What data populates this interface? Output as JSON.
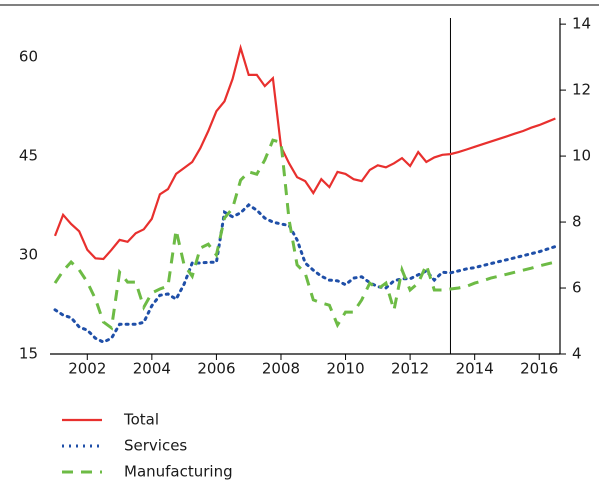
{
  "chart_data": {
    "type": "line",
    "x": [
      2001,
      2001.25,
      2001.5,
      2001.75,
      2002,
      2002.25,
      2002.5,
      2002.75,
      2003,
      2003.25,
      2003.5,
      2003.75,
      2004,
      2004.25,
      2004.5,
      2004.75,
      2005,
      2005.25,
      2005.5,
      2005.75,
      2006,
      2006.25,
      2006.5,
      2006.75,
      2007,
      2007.25,
      2007.5,
      2007.75,
      2008,
      2008.25,
      2008.5,
      2008.75,
      2009,
      2009.25,
      2009.5,
      2009.75,
      2010,
      2010.25,
      2010.5,
      2010.75,
      2011,
      2011.25,
      2011.5,
      2011.75,
      2012,
      2012.25,
      2012.5,
      2012.75,
      2013,
      2013.25,
      2013.5,
      2013.75,
      2014,
      2014.25,
      2014.5,
      2014.75,
      2015,
      2015.25,
      2015.5,
      2015.75,
      2016,
      2016.25,
      2016.5
    ],
    "series": [
      {
        "name": "Total",
        "color": "#e8302e",
        "style": "solid",
        "values": [
          32.9,
          36.1,
          34.7,
          33.6,
          30.8,
          29.5,
          29.4,
          30.8,
          32.3,
          32.0,
          33.3,
          33.9,
          35.5,
          39.2,
          40.0,
          42.3,
          43.2,
          44.1,
          46.2,
          48.8,
          51.8,
          53.3,
          56.7,
          61.4,
          57.3,
          57.3,
          55.6,
          56.8,
          46.4,
          43.9,
          41.8,
          41.2,
          39.4,
          41.5,
          40.3,
          42.6,
          42.3,
          41.5,
          41.2,
          42.9,
          43.6,
          43.3,
          43.9,
          44.7,
          43.5,
          45.6,
          44.1,
          44.8,
          45.2,
          45.3,
          45.6,
          46.0,
          46.4,
          46.8,
          47.2,
          47.6,
          48.0,
          48.4,
          48.8,
          49.3,
          49.7,
          50.2,
          50.7
        ]
      },
      {
        "name": "Services",
        "color": "#1f4fa8",
        "style": "dotted",
        "values": [
          21.7,
          20.9,
          20.5,
          19.1,
          18.6,
          17.4,
          16.8,
          17.4,
          19.5,
          19.5,
          19.5,
          19.8,
          22.3,
          23.9,
          24.1,
          23.3,
          25.6,
          28.8,
          28.8,
          28.9,
          28.9,
          36.5,
          35.8,
          36.4,
          37.6,
          36.8,
          35.6,
          35.0,
          34.7,
          34.5,
          32.3,
          28.8,
          27.7,
          26.8,
          26.2,
          26.1,
          25.5,
          26.5,
          26.7,
          25.8,
          25.2,
          25.0,
          26.1,
          26.4,
          26.4,
          27.0,
          27.6,
          26.2,
          27.4,
          27.3,
          27.6,
          27.9,
          28.1,
          28.4,
          28.7,
          29.0,
          29.3,
          29.6,
          29.9,
          30.2,
          30.5,
          30.9,
          31.3
        ]
      },
      {
        "name": "Manufacturing",
        "color": "#6dbb45",
        "style": "dashed",
        "axis": "y2",
        "values": [
          6.15,
          6.52,
          6.79,
          6.55,
          6.18,
          5.67,
          4.97,
          4.79,
          6.48,
          6.18,
          6.18,
          5.42,
          5.85,
          5.97,
          6.06,
          7.76,
          6.7,
          6.36,
          7.21,
          7.33,
          7.0,
          8.12,
          8.42,
          9.27,
          9.52,
          9.45,
          9.88,
          10.48,
          10.42,
          8.06,
          6.7,
          6.45,
          5.64,
          5.55,
          5.48,
          4.88,
          5.27,
          5.27,
          5.64,
          6.15,
          5.97,
          6.15,
          5.33,
          6.55,
          5.94,
          6.15,
          6.7,
          5.94,
          5.94,
          5.97,
          6.0,
          6.05,
          6.15,
          6.22,
          6.3,
          6.36,
          6.42,
          6.48,
          6.54,
          6.6,
          6.67,
          6.73,
          6.79
        ]
      }
    ],
    "xlim": [
      2001,
      2016.55
    ],
    "xticks": [
      2002,
      2004,
      2006,
      2008,
      2010,
      2012,
      2014,
      2016
    ],
    "ylim": [
      15,
      67.9
    ],
    "yticks": [
      15,
      30,
      45,
      60
    ],
    "y2lim": [
      4,
      14.58
    ],
    "y2ticks": [
      4,
      6,
      8,
      10,
      12,
      14
    ],
    "vline": 2013.25
  }
}
